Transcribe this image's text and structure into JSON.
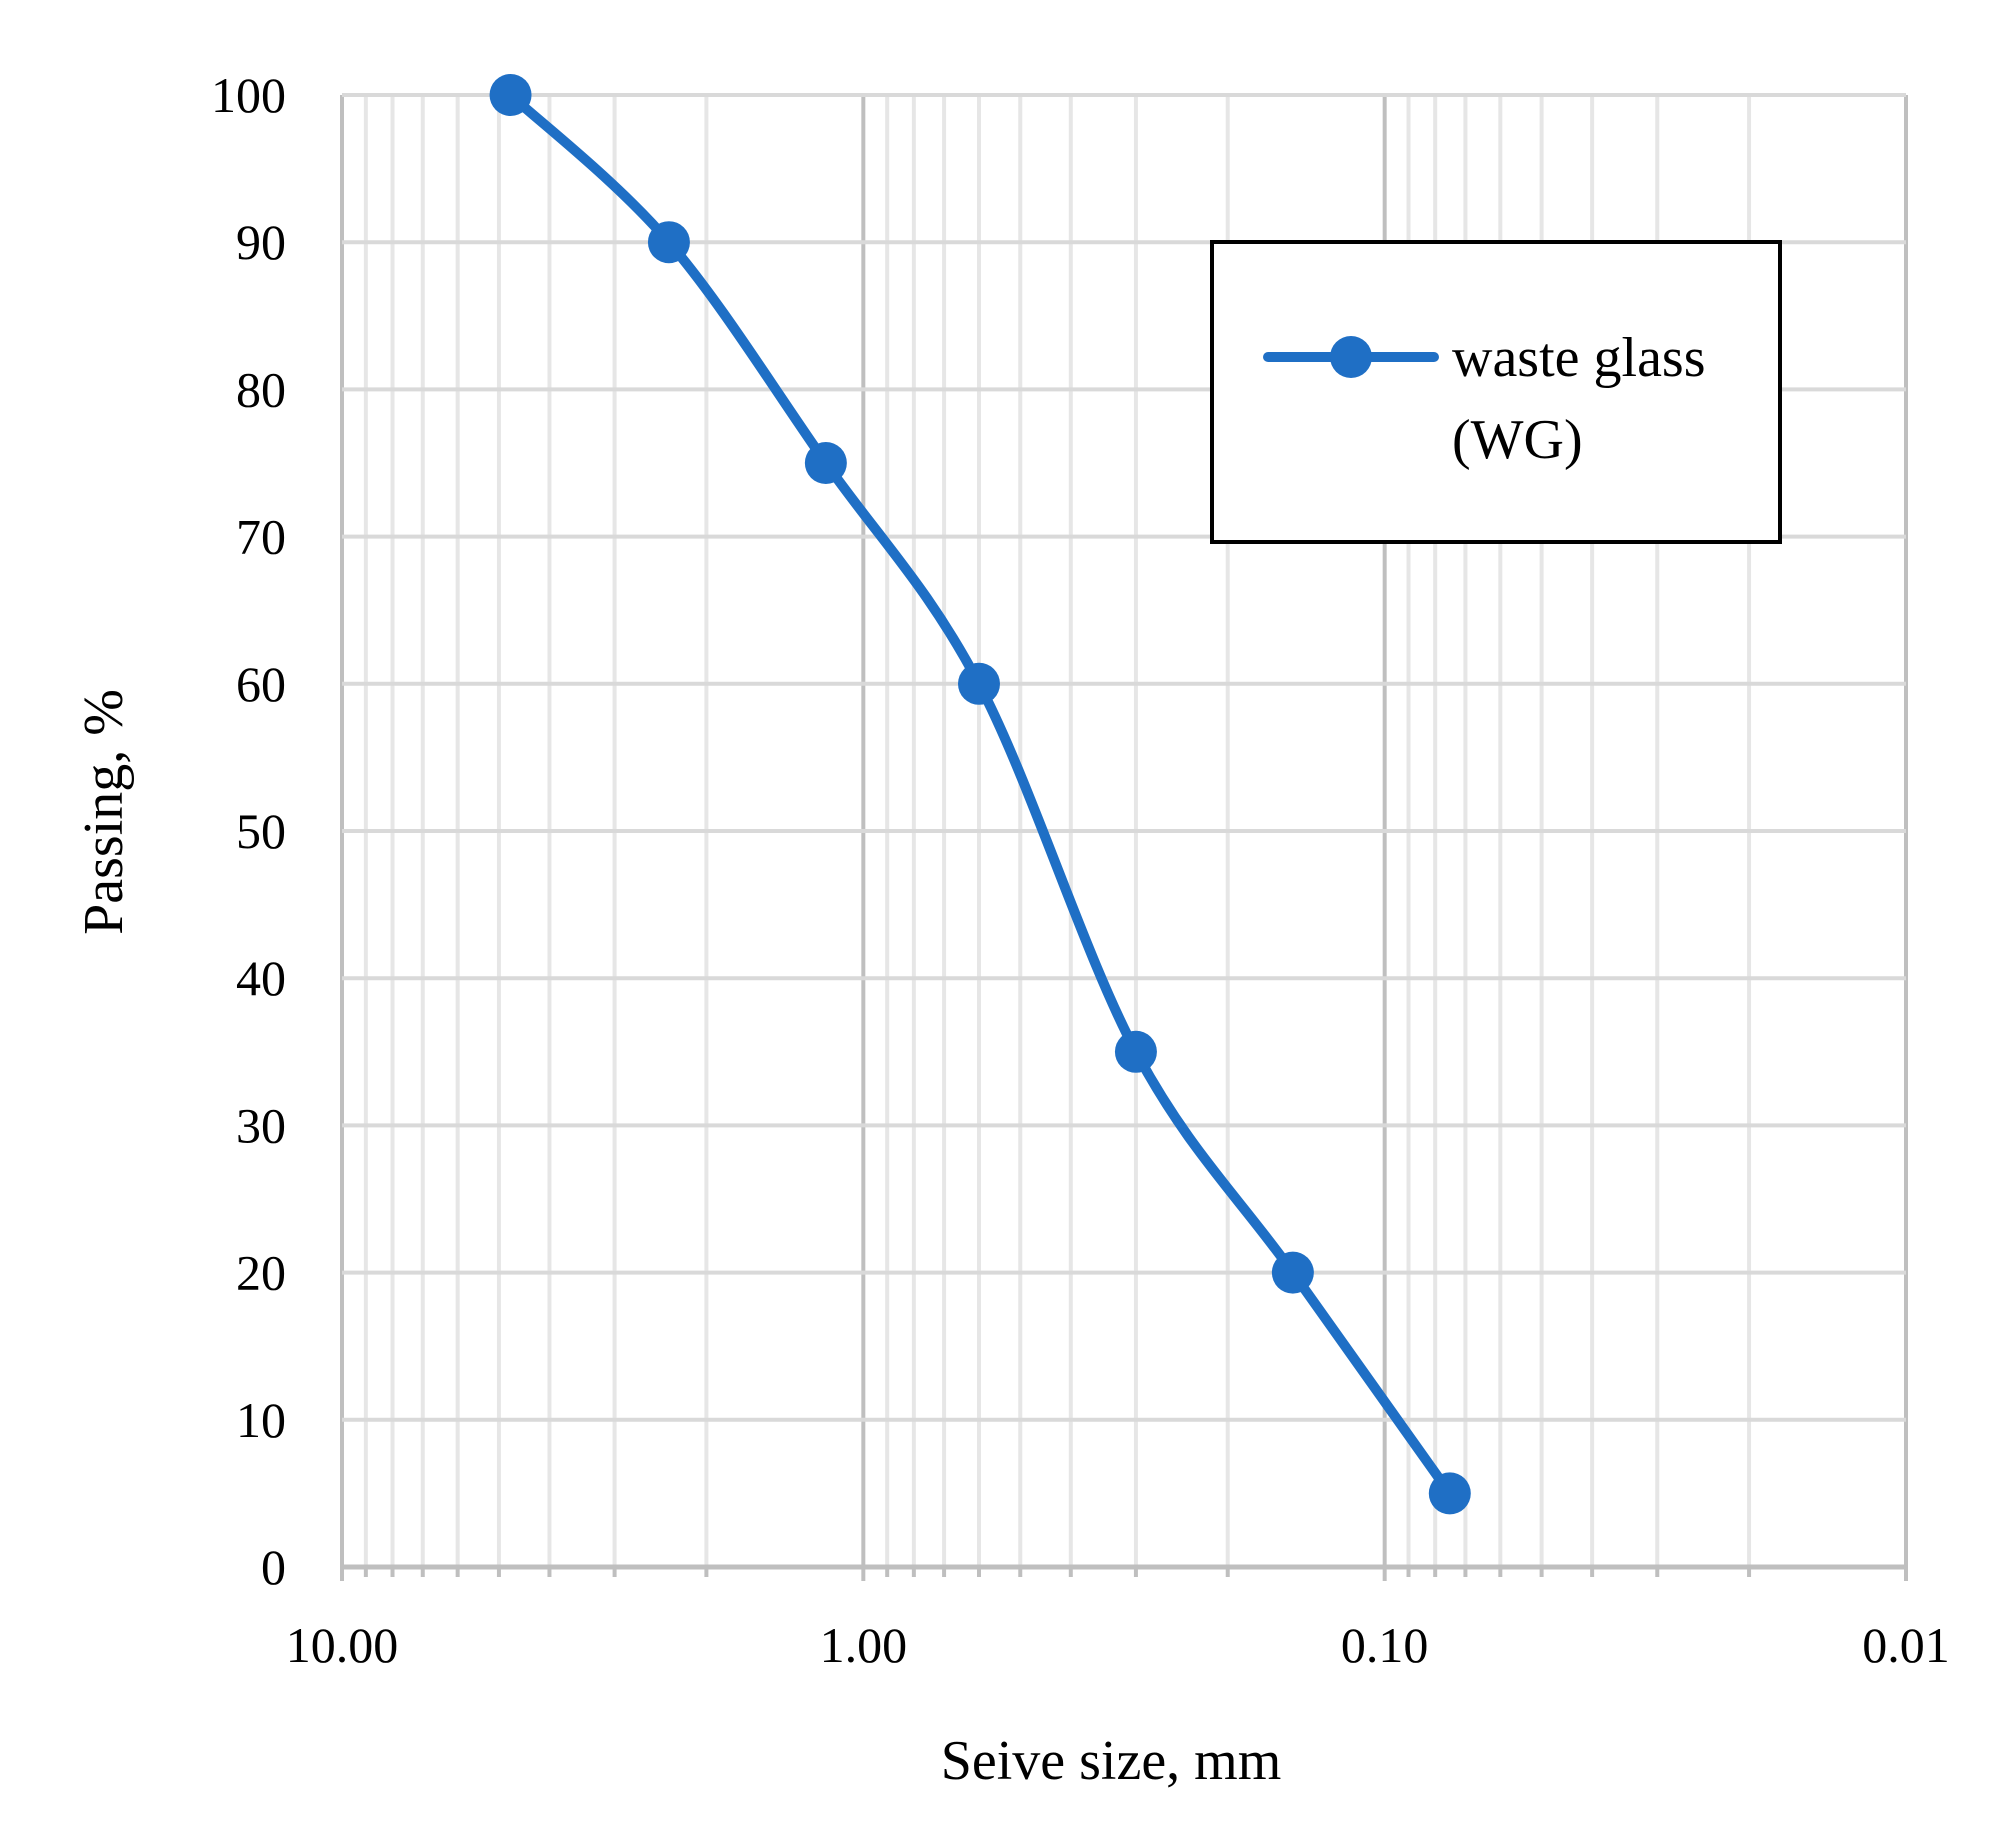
{
  "chart_data": {
    "type": "line",
    "xlabel": "Seive size, mm",
    "ylabel": "Passing, %",
    "x_scale": "log",
    "x_reversed": true,
    "xlim": [
      10,
      0.01
    ],
    "ylim": [
      0,
      100
    ],
    "x_ticks": [
      10,
      1,
      0.1,
      0.01
    ],
    "x_tick_labels": [
      "10.00",
      "1.00",
      "0.10",
      "0.01"
    ],
    "y_ticks": [
      0,
      10,
      20,
      30,
      40,
      50,
      60,
      70,
      80,
      90,
      100
    ],
    "grid": true,
    "legend_position": "top-right",
    "series": [
      {
        "name": "waste glass (WG)",
        "name_lines": [
          "waste glass",
          "(WG)"
        ],
        "color": "#1f6fc5",
        "marker": "circle",
        "smooth": true,
        "x": [
          4.75,
          2.36,
          1.18,
          0.6,
          0.3,
          0.15,
          0.075
        ],
        "y": [
          100,
          90,
          75,
          60,
          35,
          20,
          5
        ]
      }
    ]
  }
}
